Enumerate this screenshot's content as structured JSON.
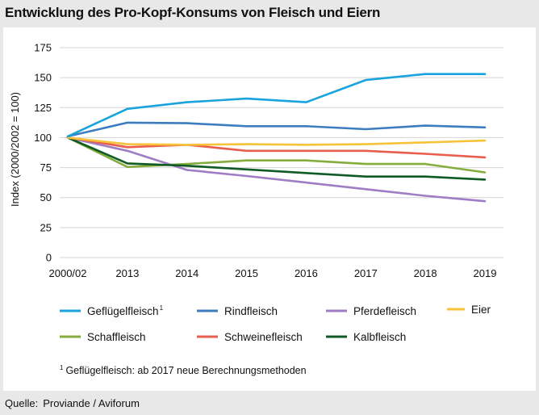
{
  "title": "Entwicklung des Pro-Kopf-Konsums von Fleisch und Eiern",
  "source_label": "Quelle:",
  "source_text": "Proviande / Aviforum",
  "chart_data": {
    "type": "line",
    "title": "Entwicklung des Pro-Kopf-Konsums von Fleisch und Eiern",
    "xlabel": "",
    "ylabel": "Index (2000/2002 = 100)",
    "ylim": [
      0,
      175
    ],
    "yticks": [
      0,
      25,
      50,
      75,
      100,
      125,
      150,
      175
    ],
    "grid": "horizontal",
    "categories": [
      "2000/02",
      "2013",
      "2014",
      "2015",
      "2016",
      "2017",
      "2018",
      "2019"
    ],
    "series": [
      {
        "name": "Geflügelfleisch",
        "sup": "1",
        "color": "#1aa3dd",
        "values": [
          101,
          124,
          129.5,
          132.5,
          129.5,
          148,
          153,
          153
        ]
      },
      {
        "name": "Rindfleisch",
        "sup": "",
        "color": "#3d7dbf",
        "values": [
          101,
          112.5,
          112,
          109.5,
          109.5,
          107,
          110,
          108.5
        ]
      },
      {
        "name": "Pferdefleisch",
        "sup": "",
        "color": "#a07cc5",
        "values": [
          100,
          89,
          73,
          68,
          62.5,
          57,
          51.5,
          47
        ]
      },
      {
        "name": "Eier",
        "sup": "",
        "color": "#f6c33b",
        "values": [
          100,
          94.5,
          94,
          94.5,
          94,
          94.5,
          96,
          97.5
        ]
      },
      {
        "name": "Schaffleisch",
        "sup": "",
        "color": "#84ad3e",
        "values": [
          100,
          75.5,
          78,
          81,
          81,
          78,
          78,
          71
        ]
      },
      {
        "name": "Schweinefleisch",
        "sup": "",
        "color": "#e95d4d",
        "values": [
          100,
          92,
          94,
          89,
          89,
          89,
          86.5,
          83.5
        ]
      },
      {
        "name": "Kalbfleisch",
        "sup": "",
        "color": "#0f5a25",
        "values": [
          100,
          78.5,
          76.5,
          73.5,
          70.5,
          67.5,
          67.5,
          65
        ]
      }
    ],
    "footnote_mark": "1",
    "footnote": "Geflügelfleisch: ab 2017 neue Berechnungsmethoden"
  }
}
